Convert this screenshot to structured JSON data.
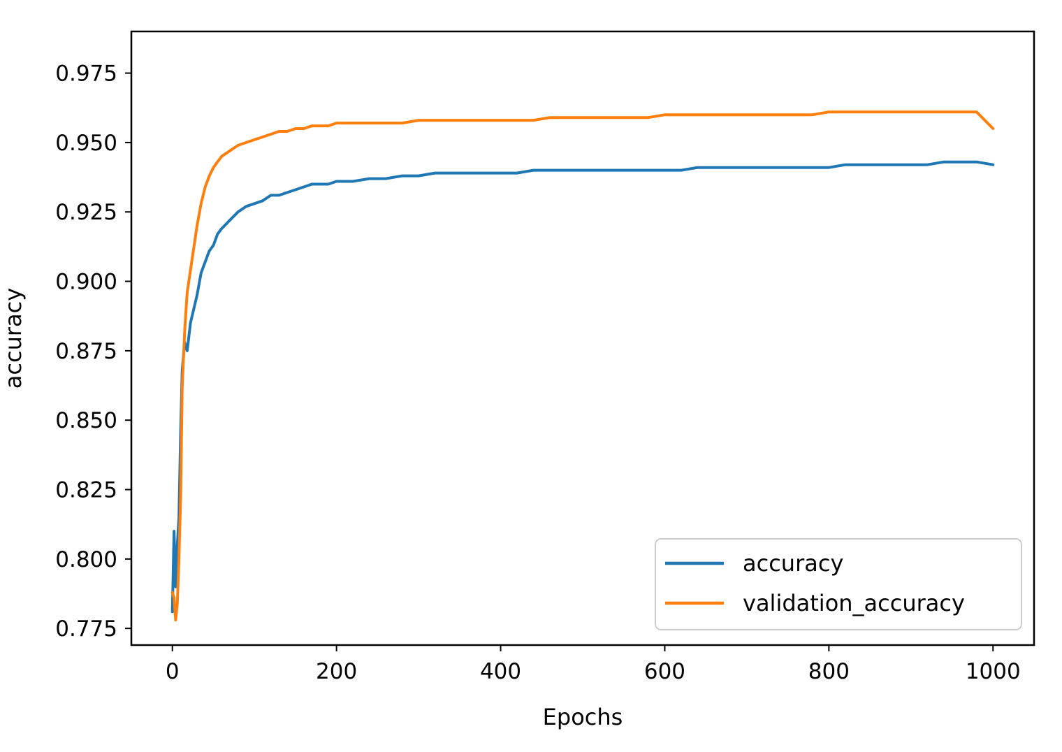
{
  "chart_data": {
    "type": "line",
    "xlabel": "Epochs",
    "ylabel": "accuracy",
    "xlim": [
      -50,
      1050
    ],
    "ylim": [
      0.769,
      0.99
    ],
    "x_ticks": [
      0,
      200,
      400,
      600,
      800,
      1000
    ],
    "x_tick_labels": [
      "0",
      "200",
      "400",
      "600",
      "800",
      "1000"
    ],
    "y_ticks": [
      0.775,
      0.8,
      0.825,
      0.85,
      0.875,
      0.9,
      0.925,
      0.95,
      0.975
    ],
    "y_tick_labels": [
      "0.775",
      "0.800",
      "0.825",
      "0.850",
      "0.875",
      "0.900",
      "0.925",
      "0.950",
      "0.975"
    ],
    "grid": false,
    "legend_position": "lower-right",
    "series": [
      {
        "name": "accuracy",
        "color": "#1f77b4",
        "x": [
          0,
          2,
          4,
          6,
          8,
          10,
          12,
          15,
          18,
          22,
          26,
          30,
          35,
          40,
          45,
          50,
          55,
          60,
          70,
          80,
          90,
          100,
          110,
          120,
          130,
          140,
          150,
          160,
          170,
          180,
          190,
          200,
          220,
          240,
          260,
          280,
          300,
          320,
          340,
          360,
          380,
          400,
          420,
          440,
          460,
          480,
          500,
          520,
          540,
          560,
          580,
          600,
          620,
          640,
          660,
          680,
          700,
          720,
          740,
          760,
          780,
          800,
          820,
          840,
          860,
          880,
          900,
          920,
          940,
          960,
          980,
          1000
        ],
        "y": [
          0.781,
          0.81,
          0.79,
          0.805,
          0.815,
          0.845,
          0.868,
          0.878,
          0.875,
          0.885,
          0.89,
          0.895,
          0.903,
          0.907,
          0.911,
          0.913,
          0.917,
          0.919,
          0.922,
          0.925,
          0.927,
          0.928,
          0.929,
          0.931,
          0.931,
          0.932,
          0.933,
          0.934,
          0.935,
          0.935,
          0.935,
          0.936,
          0.936,
          0.937,
          0.937,
          0.938,
          0.938,
          0.939,
          0.939,
          0.939,
          0.939,
          0.939,
          0.939,
          0.94,
          0.94,
          0.94,
          0.94,
          0.94,
          0.94,
          0.94,
          0.94,
          0.94,
          0.94,
          0.941,
          0.941,
          0.941,
          0.941,
          0.941,
          0.941,
          0.941,
          0.941,
          0.941,
          0.942,
          0.942,
          0.942,
          0.942,
          0.942,
          0.942,
          0.943,
          0.943,
          0.943,
          0.942
        ]
      },
      {
        "name": "validation_accuracy",
        "color": "#ff7f0e",
        "x": [
          0,
          2,
          4,
          6,
          8,
          10,
          12,
          15,
          18,
          22,
          26,
          30,
          35,
          40,
          45,
          50,
          55,
          60,
          70,
          80,
          90,
          100,
          110,
          120,
          130,
          140,
          150,
          160,
          170,
          180,
          190,
          200,
          220,
          240,
          260,
          280,
          300,
          320,
          340,
          360,
          380,
          400,
          420,
          440,
          460,
          480,
          500,
          520,
          540,
          560,
          580,
          600,
          620,
          640,
          660,
          680,
          700,
          720,
          740,
          760,
          780,
          800,
          820,
          840,
          860,
          880,
          900,
          920,
          940,
          960,
          980,
          1000
        ],
        "y": [
          0.788,
          0.786,
          0.778,
          0.784,
          0.8,
          0.822,
          0.862,
          0.882,
          0.896,
          0.904,
          0.912,
          0.92,
          0.928,
          0.934,
          0.938,
          0.941,
          0.943,
          0.945,
          0.947,
          0.949,
          0.95,
          0.951,
          0.952,
          0.953,
          0.954,
          0.954,
          0.955,
          0.955,
          0.956,
          0.956,
          0.956,
          0.957,
          0.957,
          0.957,
          0.957,
          0.957,
          0.958,
          0.958,
          0.958,
          0.958,
          0.958,
          0.958,
          0.958,
          0.958,
          0.959,
          0.959,
          0.959,
          0.959,
          0.959,
          0.959,
          0.959,
          0.96,
          0.96,
          0.96,
          0.96,
          0.96,
          0.96,
          0.96,
          0.96,
          0.96,
          0.96,
          0.961,
          0.961,
          0.961,
          0.961,
          0.961,
          0.961,
          0.961,
          0.961,
          0.961,
          0.961,
          0.955
        ]
      }
    ]
  }
}
